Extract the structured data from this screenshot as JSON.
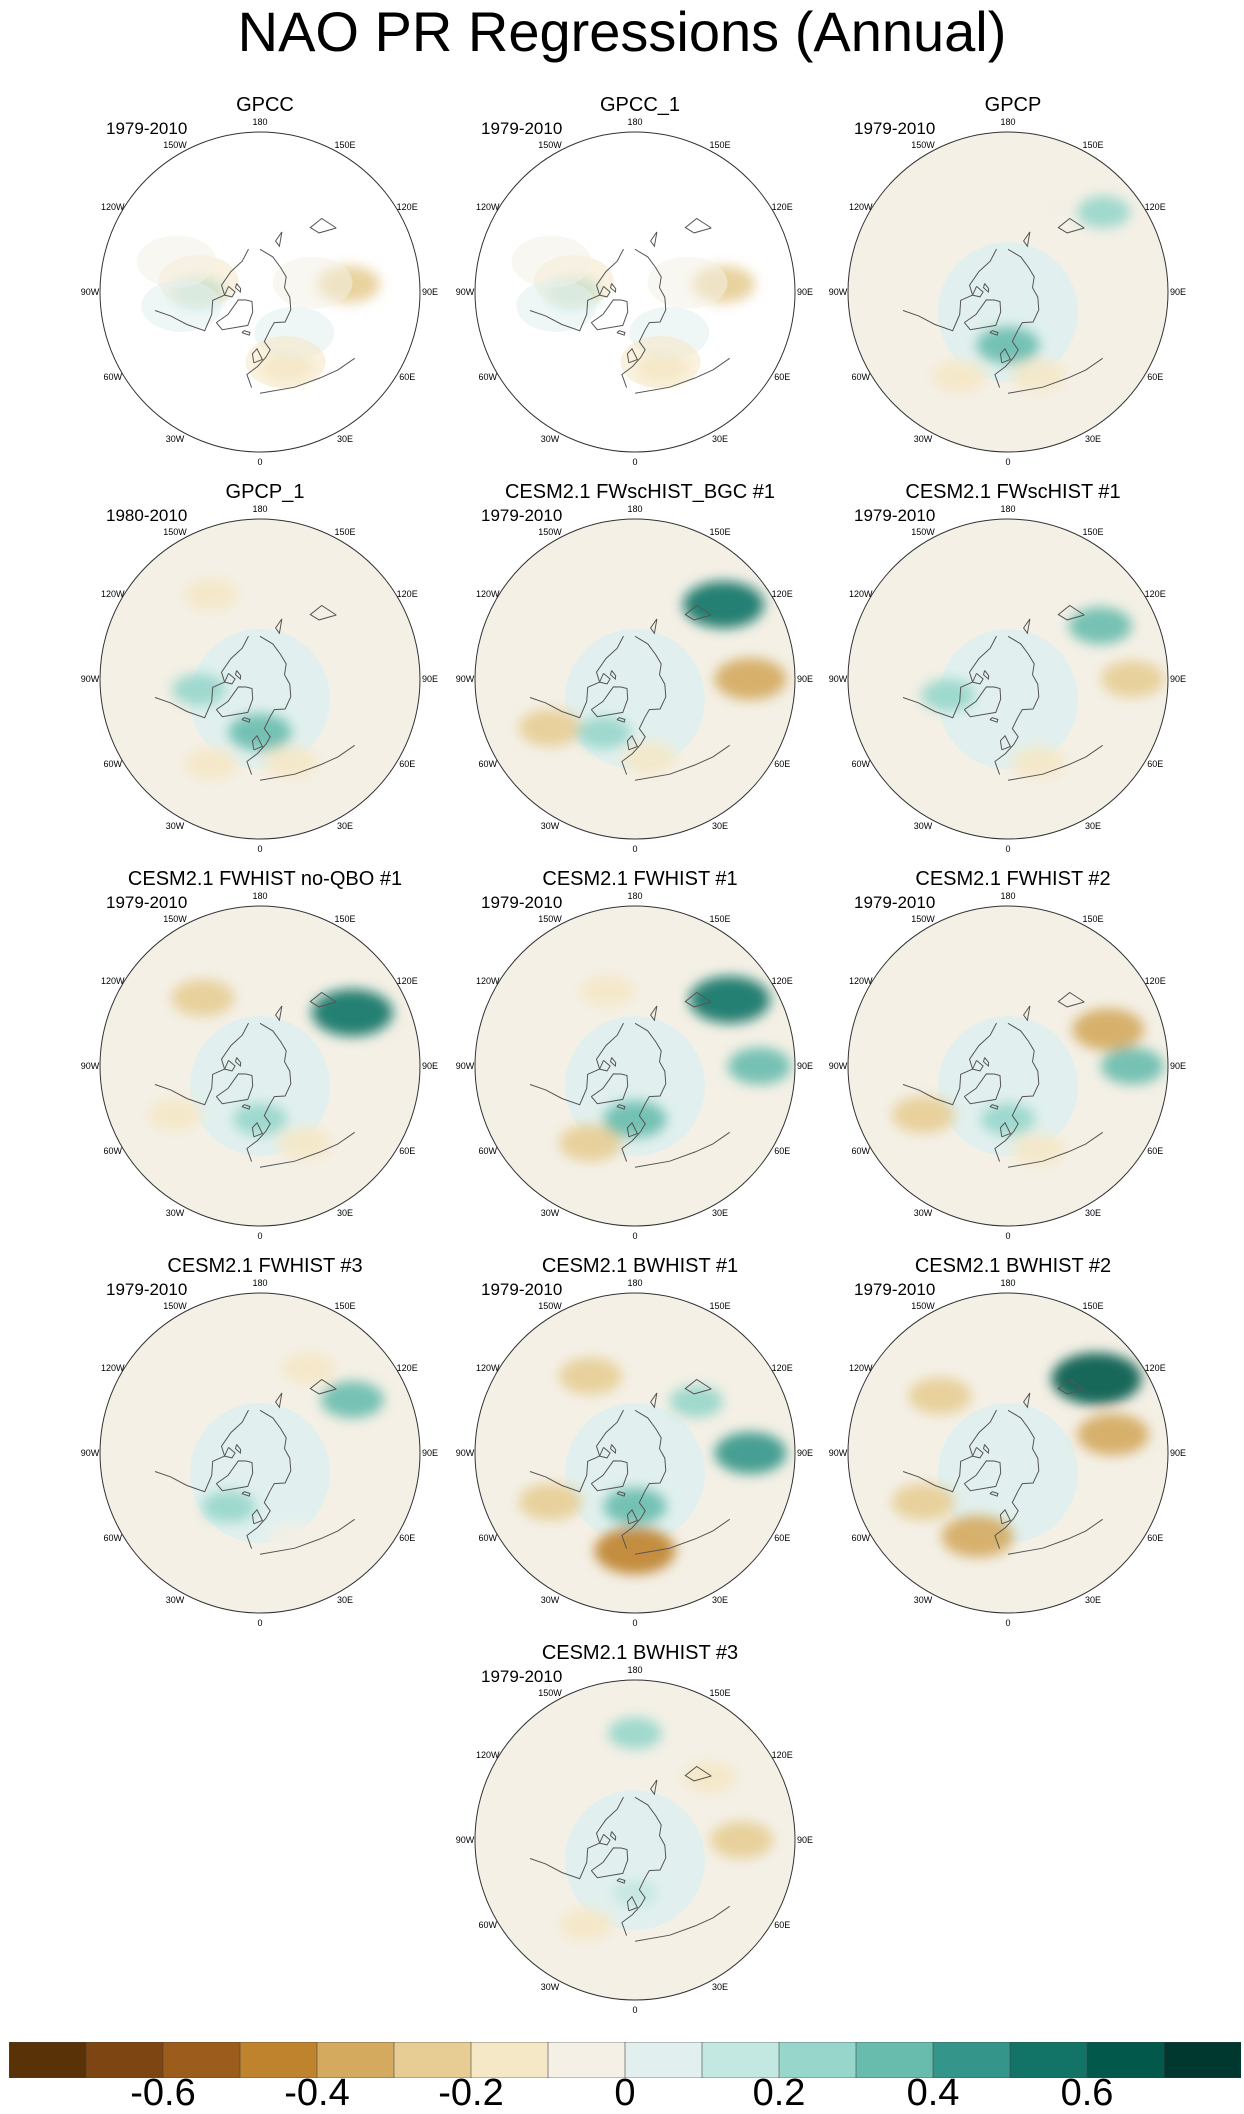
{
  "title": "NAO PR Regressions (Annual)",
  "chart_data": {
    "type": "heatmap",
    "projection": "north polar stereographic",
    "title": "NAO PR Regressions (Annual)",
    "colorbar": {
      "levels": [
        -0.7,
        -0.6,
        -0.5,
        -0.4,
        -0.3,
        -0.2,
        -0.1,
        0,
        0.1,
        0.2,
        0.3,
        0.4,
        0.5,
        0.6,
        0.7
      ],
      "tick_labels": [
        "-0.6",
        "-0.4",
        "-0.2",
        "0",
        "0.2",
        "0.4",
        "0.6"
      ],
      "tick_values": [
        -0.6,
        -0.4,
        -0.2,
        0,
        0.2,
        0.4,
        0.6
      ],
      "colors": [
        "#5a3208",
        "#7d4512",
        "#9c5d1c",
        "#bf832e",
        "#d4aa5e",
        "#e7cd93",
        "#f5e8c6",
        "#f4f0e6",
        "#e1f0ee",
        "#c3e7e1",
        "#97d6cb",
        "#68bcae",
        "#34968a",
        "#127466",
        "#02594b",
        "#003830"
      ]
    },
    "longitude_labels": [
      "180",
      "150E",
      "120E",
      "90E",
      "60E",
      "30E",
      "0",
      "30W",
      "60W",
      "90W",
      "120W",
      "150W"
    ],
    "panels": [
      {
        "title": "GPCC",
        "years": "1979-2010",
        "ocean_masked": true,
        "anomalies": [
          {
            "lon": 20,
            "lat": 45,
            "value": -0.2
          },
          {
            "lon": -90,
            "lat": 55,
            "value": 0.2
          },
          {
            "lon": 95,
            "lat": 40,
            "value": -0.3
          }
        ]
      },
      {
        "title": "GPCC_1",
        "years": "1979-2010",
        "ocean_masked": true,
        "anomalies": [
          {
            "lon": 20,
            "lat": 45,
            "value": -0.2
          },
          {
            "lon": -90,
            "lat": 55,
            "value": 0.2
          },
          {
            "lon": 95,
            "lat": 40,
            "value": -0.3
          }
        ]
      },
      {
        "title": "GPCP",
        "years": "1979-2010",
        "ocean_masked": false,
        "anomalies": [
          {
            "lon": -30,
            "lat": 35,
            "value": -0.2
          },
          {
            "lon": 0,
            "lat": 60,
            "value": 0.3
          },
          {
            "lon": 20,
            "lat": 40,
            "value": -0.2
          },
          {
            "lon": 150,
            "lat": 35,
            "value": -0.1
          },
          {
            "lon": 130,
            "lat": 20,
            "value": 0.2
          }
        ]
      },
      {
        "title": "GPCP_1",
        "years": "1980-2010",
        "ocean_masked": false,
        "anomalies": [
          {
            "lon": -30,
            "lat": 35,
            "value": -0.2
          },
          {
            "lon": 0,
            "lat": 60,
            "value": 0.3
          },
          {
            "lon": 20,
            "lat": 40,
            "value": -0.2
          },
          {
            "lon": -150,
            "lat": 35,
            "value": -0.2
          },
          {
            "lon": -80,
            "lat": 55,
            "value": 0.2
          }
        ]
      },
      {
        "title": "CESM2.1 FWscHIST_BGC #1",
        "years": "1979-2010",
        "ocean_masked": false,
        "anomalies": [
          {
            "lon": 130,
            "lat": 25,
            "value": 0.5
          },
          {
            "lon": -60,
            "lat": 35,
            "value": -0.3
          },
          {
            "lon": -30,
            "lat": 55,
            "value": 0.2
          },
          {
            "lon": 90,
            "lat": 25,
            "value": -0.4
          },
          {
            "lon": 10,
            "lat": 45,
            "value": -0.2
          }
        ]
      },
      {
        "title": "CESM2.1 FWscHIST #1",
        "years": "1979-2010",
        "ocean_masked": false,
        "anomalies": [
          {
            "lon": 120,
            "lat": 30,
            "value": 0.3
          },
          {
            "lon": 20,
            "lat": 40,
            "value": -0.2
          },
          {
            "lon": -75,
            "lat": 55,
            "value": 0.2
          },
          {
            "lon": 90,
            "lat": 20,
            "value": -0.3
          }
        ]
      },
      {
        "title": "CESM2.1 FWHIST no-QBO #1",
        "years": "1979-2010",
        "ocean_masked": false,
        "anomalies": [
          {
            "lon": 120,
            "lat": 30,
            "value": 0.5
          },
          {
            "lon": -140,
            "lat": 40,
            "value": -0.3
          },
          {
            "lon": -60,
            "lat": 35,
            "value": -0.2
          },
          {
            "lon": 0,
            "lat": 60,
            "value": 0.2
          },
          {
            "lon": 30,
            "lat": 40,
            "value": -0.2
          }
        ]
      },
      {
        "title": "CESM2.1 FWHIST #1",
        "years": "1979-2010",
        "ocean_masked": false,
        "anomalies": [
          {
            "lon": 125,
            "lat": 25,
            "value": 0.5
          },
          {
            "lon": -160,
            "lat": 45,
            "value": -0.2
          },
          {
            "lon": -30,
            "lat": 40,
            "value": -0.3
          },
          {
            "lon": 0,
            "lat": 60,
            "value": 0.3
          },
          {
            "lon": 90,
            "lat": 20,
            "value": 0.3
          }
        ]
      },
      {
        "title": "CESM2.1 FWHIST #2",
        "years": "1979-2010",
        "ocean_masked": false,
        "anomalies": [
          {
            "lon": -60,
            "lat": 35,
            "value": -0.3
          },
          {
            "lon": 0,
            "lat": 60,
            "value": 0.2
          },
          {
            "lon": 110,
            "lat": 30,
            "value": -0.4
          },
          {
            "lon": 90,
            "lat": 20,
            "value": 0.3
          },
          {
            "lon": 20,
            "lat": 40,
            "value": -0.2
          }
        ]
      },
      {
        "title": "CESM2.1 FWHIST #3",
        "years": "1979-2010",
        "ocean_masked": false,
        "anomalies": [
          {
            "lon": 150,
            "lat": 35,
            "value": -0.2
          },
          {
            "lon": 120,
            "lat": 30,
            "value": 0.3
          },
          {
            "lon": -30,
            "lat": 55,
            "value": 0.2
          },
          {
            "lon": 20,
            "lat": 40,
            "value": -0.1
          }
        ]
      },
      {
        "title": "CESM2.1 BWHIST #1",
        "years": "1979-2010",
        "ocean_masked": false,
        "anomalies": [
          {
            "lon": -150,
            "lat": 40,
            "value": -0.3
          },
          {
            "lon": -60,
            "lat": 35,
            "value": -0.3
          },
          {
            "lon": 0,
            "lat": 35,
            "value": -0.5
          },
          {
            "lon": 90,
            "lat": 25,
            "value": 0.4
          },
          {
            "lon": 0,
            "lat": 60,
            "value": 0.3
          },
          {
            "lon": 130,
            "lat": 45,
            "value": 0.2
          }
        ]
      },
      {
        "title": "CESM2.1 BWHIST #2",
        "years": "1979-2010",
        "ocean_masked": false,
        "anomalies": [
          {
            "lon": 130,
            "lat": 25,
            "value": 0.6
          },
          {
            "lon": -60,
            "lat": 35,
            "value": -0.3
          },
          {
            "lon": -20,
            "lat": 40,
            "value": -0.4
          },
          {
            "lon": -130,
            "lat": 40,
            "value": -0.3
          },
          {
            "lon": 100,
            "lat": 30,
            "value": -0.4
          }
        ]
      },
      {
        "title": "CESM2.1 BWHIST #3",
        "years": "1979-2010",
        "ocean_masked": false,
        "anomalies": [
          {
            "lon": 130,
            "lat": 35,
            "value": -0.2
          },
          {
            "lon": -30,
            "lat": 35,
            "value": -0.2
          },
          {
            "lon": 90,
            "lat": 30,
            "value": -0.3
          },
          {
            "lon": 0,
            "lat": 60,
            "value": 0.1
          },
          {
            "lon": 180,
            "lat": 30,
            "value": 0.2
          }
        ]
      }
    ]
  }
}
